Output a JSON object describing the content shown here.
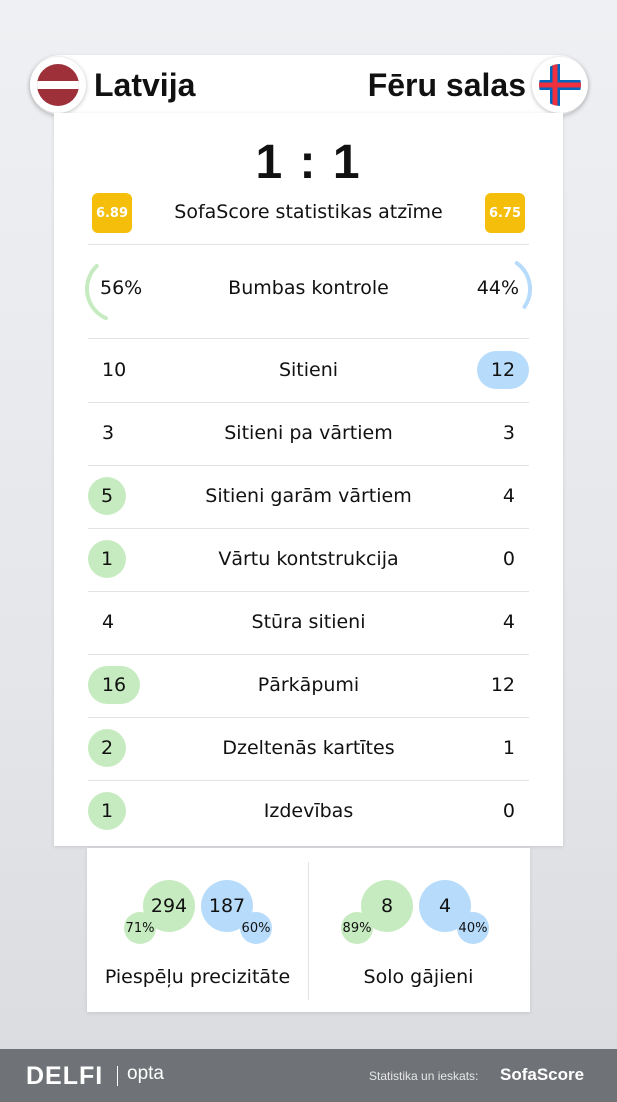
{
  "header": {
    "home_team": "Latvija",
    "away_team": "Fēru salas"
  },
  "score": "1 : 1",
  "rating": {
    "label": "SofaScore statistikas atzīme",
    "home": "6.89",
    "away": "6.75"
  },
  "possession": {
    "label": "Bumbas kontrole",
    "home": "56%",
    "away": "44%",
    "home_fraction": 0.56,
    "away_fraction": 0.44
  },
  "stats": [
    {
      "label": "Sitieni",
      "home": "10",
      "away": "12",
      "highlight": "away"
    },
    {
      "label": "Sitieni pa vārtiem",
      "home": "3",
      "away": "3",
      "highlight": "none"
    },
    {
      "label": "Sitieni garām vārtiem",
      "home": "5",
      "away": "4",
      "highlight": "home"
    },
    {
      "label": "Vārtu kontstrukcija",
      "home": "1",
      "away": "0",
      "highlight": "home"
    },
    {
      "label": "Stūra sitieni",
      "home": "4",
      "away": "4",
      "highlight": "none"
    },
    {
      "label": "Pārkāpumi",
      "home": "16",
      "away": "12",
      "highlight": "home"
    },
    {
      "label": "Dzeltenās kartītes",
      "home": "2",
      "away": "1",
      "highlight": "home"
    },
    {
      "label": "Izdevības",
      "home": "1",
      "away": "0",
      "highlight": "home"
    }
  ],
  "passes": {
    "label": "Piespēļu precizitāte",
    "home_total": "294",
    "home_pct": "71%",
    "away_total": "187",
    "away_pct": "60%"
  },
  "dribbles": {
    "label": "Solo gājieni",
    "home_total": "8",
    "home_pct": "89%",
    "away_total": "4",
    "away_pct": "40%"
  },
  "footer": {
    "brand": "DELFI",
    "partner": "opta",
    "credit": "Statistika un ieskats:",
    "source": "SofaScore"
  },
  "colors": {
    "home_highlight": "#c7ebc0",
    "away_highlight": "#b7dbfa",
    "rating_badge": "#f5be0b",
    "footer_bg": "#6f7377"
  },
  "icons": {
    "home_flag": "latvia-flag-icon",
    "away_flag": "faroe-islands-flag-icon"
  }
}
